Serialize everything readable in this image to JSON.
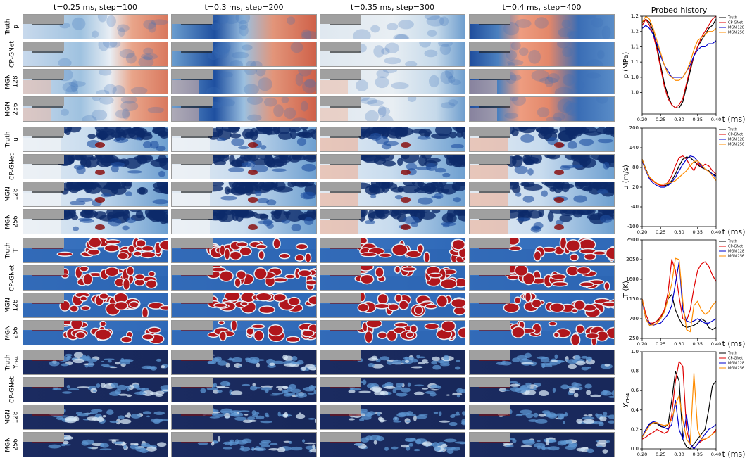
{
  "figure": {
    "column_titles": [
      "t=0.25 ms, step=100",
      "t=0.3 ms, step=200",
      "t=0.35 ms, step=300",
      "t=0.4 ms, step=400"
    ],
    "row_labels": [
      [
        "Truth"
      ],
      [
        "CP-GNet"
      ],
      [
        "MGN",
        "128"
      ],
      [
        "MGN",
        "256"
      ]
    ],
    "row_groups": [
      {
        "variable": "p"
      },
      {
        "variable": "u"
      },
      {
        "variable": "T"
      },
      {
        "variable": "Y",
        "variable_sub": "CH4"
      }
    ]
  },
  "chart_data": [
    {
      "type": "line",
      "title": "Probed history",
      "xlabel": "t (ms)",
      "ylabel": "p (MPa)",
      "x": [
        0.2,
        0.21,
        0.22,
        0.23,
        0.24,
        0.25,
        0.26,
        0.27,
        0.28,
        0.29,
        0.3,
        0.31,
        0.32,
        0.33,
        0.34,
        0.35,
        0.36,
        0.37,
        0.38,
        0.39,
        0.4
      ],
      "xlim": [
        0.2,
        0.4
      ],
      "xticks": [
        {
          "value": 0.2,
          "label": "0.20"
        },
        0.25,
        {
          "value": 0.3,
          "label": "0.30"
        },
        0.35,
        {
          "value": 0.4,
          "label": "0.40"
        }
      ],
      "ylim": [
        0.93,
        1.25
      ],
      "yticks": [
        {
          "value": 1.0,
          "label": "1.0"
        },
        {
          "value": 1.05,
          "label": "1.0"
        },
        1.1,
        {
          "value": 1.15,
          "label": "1.1"
        },
        1.2,
        {
          "value": 1.25,
          "label": "1.2"
        }
      ],
      "legend": "outside-right",
      "series": [
        {
          "name": "Truth",
          "color": "#000000",
          "values": [
            1.23,
            1.24,
            1.23,
            1.2,
            1.15,
            1.09,
            1.03,
            0.99,
            0.96,
            0.95,
            0.95,
            0.97,
            1.02,
            1.07,
            1.12,
            1.15,
            1.17,
            1.19,
            1.21,
            1.22,
            1.24
          ]
        },
        {
          "name": "CP-GNet",
          "color": "#e00000",
          "values": [
            1.22,
            1.24,
            1.22,
            1.19,
            1.14,
            1.08,
            1.02,
            0.98,
            0.96,
            0.95,
            0.96,
            0.98,
            1.03,
            1.08,
            1.12,
            1.15,
            1.18,
            1.2,
            1.22,
            1.24,
            1.25
          ]
        },
        {
          "name": "MGN 128",
          "color": "#0000cc",
          "values": [
            1.21,
            1.22,
            1.21,
            1.19,
            1.16,
            1.12,
            1.09,
            1.07,
            1.05,
            1.05,
            1.05,
            1.05,
            1.07,
            1.09,
            1.12,
            1.14,
            1.15,
            1.15,
            1.16,
            1.16,
            1.17
          ]
        },
        {
          "name": "MGN 256",
          "color": "#ff8c00",
          "values": [
            1.23,
            1.25,
            1.24,
            1.21,
            1.17,
            1.13,
            1.09,
            1.06,
            1.05,
            1.04,
            1.04,
            1.05,
            1.07,
            1.1,
            1.14,
            1.17,
            1.18,
            1.19,
            1.2,
            1.2,
            1.21
          ]
        }
      ]
    },
    {
      "type": "line",
      "xlabel": "t (ms)",
      "ylabel": "u (m/s)",
      "x": [
        0.2,
        0.21,
        0.22,
        0.23,
        0.24,
        0.25,
        0.26,
        0.27,
        0.28,
        0.29,
        0.3,
        0.31,
        0.32,
        0.33,
        0.34,
        0.35,
        0.36,
        0.37,
        0.38,
        0.39,
        0.4
      ],
      "xlim": [
        0.2,
        0.4
      ],
      "xticks": [
        {
          "value": 0.2,
          "label": "0.20"
        },
        0.25,
        {
          "value": 0.3,
          "label": "0.30"
        },
        0.35,
        {
          "value": 0.4,
          "label": "0.40"
        }
      ],
      "ylim": [
        -100,
        200
      ],
      "yticks": [
        -100,
        -40,
        20,
        80,
        140,
        200
      ],
      "legend": "outside-right",
      "series": [
        {
          "name": "Truth",
          "color": "#000000",
          "values": [
            105,
            75,
            50,
            40,
            30,
            25,
            24,
            28,
            40,
            60,
            85,
            105,
            112,
            110,
            100,
            88,
            80,
            75,
            70,
            60,
            55
          ]
        },
        {
          "name": "CP-GNet",
          "color": "#e00000",
          "values": [
            100,
            70,
            48,
            38,
            30,
            25,
            26,
            35,
            55,
            85,
            110,
            115,
            105,
            85,
            70,
            95,
            80,
            90,
            85,
            70,
            60
          ]
        },
        {
          "name": "MGN 128",
          "color": "#0000cc",
          "values": [
            100,
            70,
            45,
            32,
            25,
            20,
            20,
            25,
            35,
            50,
            70,
            90,
            105,
            115,
            112,
            100,
            85,
            75,
            68,
            60,
            50
          ]
        },
        {
          "name": "MGN 256",
          "color": "#ff8c00",
          "values": [
            105,
            72,
            50,
            40,
            32,
            28,
            30,
            32,
            35,
            40,
            50,
            60,
            70,
            85,
            98,
            100,
            90,
            75,
            68,
            55,
            40
          ]
        }
      ]
    },
    {
      "type": "line",
      "xlabel": "t (ms)",
      "ylabel": "T (K)",
      "x": [
        0.2,
        0.21,
        0.22,
        0.23,
        0.24,
        0.25,
        0.26,
        0.27,
        0.28,
        0.29,
        0.3,
        0.31,
        0.32,
        0.33,
        0.34,
        0.35,
        0.36,
        0.37,
        0.38,
        0.39,
        0.4
      ],
      "xlim": [
        0.2,
        0.4
      ],
      "xticks": [
        {
          "value": 0.2,
          "label": "0.20"
        },
        0.25,
        {
          "value": 0.3,
          "label": "0.30"
        },
        0.35,
        {
          "value": 0.4,
          "label": "0.40"
        }
      ],
      "ylim": [
        250,
        2500
      ],
      "yticks": [
        250,
        700,
        1150,
        1600,
        2050,
        2500
      ],
      "legend": "outside-right",
      "series": [
        {
          "name": "Truth",
          "color": "#000000",
          "values": [
            1150,
            700,
            550,
            600,
            650,
            700,
            900,
            1150,
            1250,
            900,
            700,
            550,
            500,
            520,
            550,
            600,
            700,
            650,
            500,
            450,
            500
          ]
        },
        {
          "name": "CP-GNet",
          "color": "#e00000",
          "values": [
            1150,
            800,
            600,
            600,
            650,
            750,
            900,
            1300,
            2050,
            1800,
            1200,
            700,
            650,
            900,
            1400,
            1800,
            1950,
            2000,
            1900,
            1700,
            1550
          ]
        },
        {
          "name": "MGN 128",
          "color": "#0000cc",
          "values": [
            1100,
            700,
            600,
            550,
            580,
            600,
            700,
            800,
            1000,
            1500,
            2000,
            900,
            650,
            620,
            650,
            700,
            650,
            600,
            600,
            650,
            700
          ]
        },
        {
          "name": "MGN 256",
          "color": "#ff8c00",
          "values": [
            1150,
            700,
            550,
            560,
            600,
            700,
            850,
            1150,
            1500,
            2080,
            2050,
            1100,
            450,
            400,
            1000,
            1100,
            900,
            800,
            850,
            1000,
            1100
          ]
        }
      ]
    },
    {
      "type": "line",
      "xlabel": "t (ms)",
      "ylabel": "Y",
      "ylabel_sub": "CH4",
      "x": [
        0.2,
        0.21,
        0.22,
        0.23,
        0.24,
        0.25,
        0.26,
        0.27,
        0.28,
        0.29,
        0.3,
        0.31,
        0.32,
        0.33,
        0.34,
        0.35,
        0.36,
        0.37,
        0.38,
        0.39,
        0.4
      ],
      "xlim": [
        0.2,
        0.4
      ],
      "xticks": [
        {
          "value": 0.2,
          "label": "0.20"
        },
        0.25,
        {
          "value": 0.3,
          "label": "0.30"
        },
        0.35,
        {
          "value": 0.4,
          "label": "0.40"
        }
      ],
      "ylim": [
        0,
        1
      ],
      "yticks": [
        {
          "value": 0,
          "label": "0.0"
        },
        0.2,
        0.4,
        0.6,
        0.8,
        {
          "value": 1,
          "label": "1.0"
        }
      ],
      "legend": "outside-right",
      "series": [
        {
          "name": "Truth",
          "color": "#000000",
          "values": [
            0.12,
            0.2,
            0.25,
            0.27,
            0.26,
            0.23,
            0.22,
            0.25,
            0.5,
            0.8,
            0.7,
            0.1,
            0.02,
            0.0,
            0.05,
            0.1,
            0.15,
            0.2,
            0.4,
            0.65,
            0.7
          ]
        },
        {
          "name": "CP-GNet",
          "color": "#e00000",
          "values": [
            0.1,
            0.12,
            0.15,
            0.17,
            0.2,
            0.18,
            0.16,
            0.18,
            0.35,
            0.7,
            0.9,
            0.85,
            0.2,
            0.05,
            0.0,
            0.05,
            0.08,
            0.1,
            0.12,
            0.15,
            0.2
          ]
        },
        {
          "name": "MGN 128",
          "color": "#0000cc",
          "values": [
            0.12,
            0.2,
            0.26,
            0.28,
            0.27,
            0.24,
            0.22,
            0.2,
            0.25,
            0.5,
            0.2,
            0.1,
            0.35,
            0.05,
            0.0,
            0.05,
            0.1,
            0.15,
            0.2,
            0.22,
            0.25
          ]
        },
        {
          "name": "MGN 256",
          "color": "#ff8c00",
          "values": [
            0.12,
            0.18,
            0.24,
            0.27,
            0.27,
            0.25,
            0.24,
            0.25,
            0.3,
            0.45,
            0.55,
            0.3,
            0.1,
            0.05,
            0.78,
            0.2,
            0.1,
            0.1,
            0.12,
            0.15,
            0.18
          ]
        }
      ]
    }
  ]
}
